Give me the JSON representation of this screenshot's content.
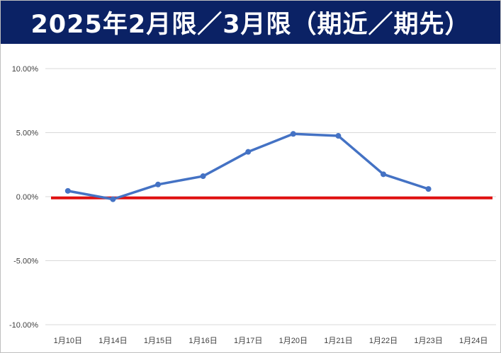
{
  "title": "2025年2月限／3月限（期近／期先）",
  "colors": {
    "title_bg": "#0b2265",
    "title_text": "#ffffff",
    "series": "#4472c4",
    "zero_line": "#e01010",
    "grid": "#d9d9d9"
  },
  "chart_data": {
    "type": "line",
    "categories": [
      "1月10日",
      "1月14日",
      "1月15日",
      "1月16日",
      "1月17日",
      "1月20日",
      "1月21日",
      "1月22日",
      "1月23日",
      "1月24日"
    ],
    "y_tick_labels": [
      "10.00%",
      "5.00%",
      "0.00%",
      "-5.00%",
      "-10.00%"
    ],
    "y_ticks": [
      10,
      5,
      0,
      -5,
      -10
    ],
    "ylim": [
      -10,
      10
    ],
    "y_unit": "%",
    "grid": true,
    "legend": "none",
    "series": [
      {
        "values": [
          0.45,
          -0.2,
          0.95,
          1.6,
          3.5,
          4.9,
          4.75,
          1.75,
          0.6,
          null
        ]
      }
    ],
    "reference_line": {
      "value": -0.1
    }
  }
}
